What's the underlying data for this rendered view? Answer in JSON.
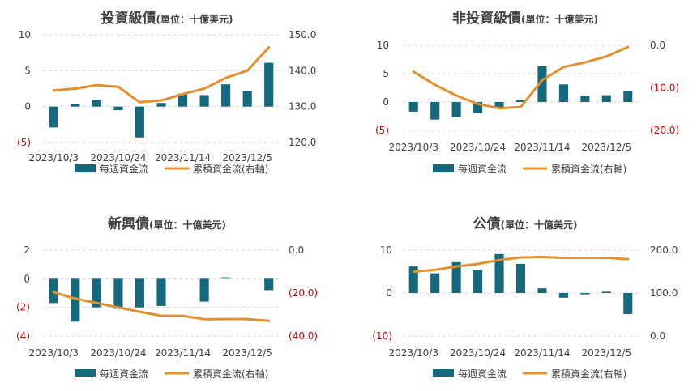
{
  "colors": {
    "bar": "#14697c",
    "line": "#e3902e",
    "grid": "#d9d9d9",
    "text": "#404040",
    "negative": "#e00000"
  },
  "legend": {
    "bar_label": "每週資金流",
    "line_label": "累積資金流(右軸)"
  },
  "chart_data": [
    {
      "type": "bar+line",
      "title": "投資級債",
      "subtitle": "(單位：十億美元)",
      "x_tick_labels": [
        "2023/10/3",
        "2023/10/24",
        "2023/11/14",
        "2023/12/5"
      ],
      "x_tick_indices": [
        0,
        3,
        6,
        9
      ],
      "left_ticks": [
        {
          "v": 10,
          "label": "10"
        },
        {
          "v": 5,
          "label": "5"
        },
        {
          "v": 0,
          "label": "0"
        },
        {
          "v": -5,
          "label": "(5)"
        }
      ],
      "right_ticks": [
        {
          "v": 150,
          "label": "150.0"
        },
        {
          "v": 140,
          "label": "140.0"
        },
        {
          "v": 130,
          "label": "130.0"
        },
        {
          "v": 120,
          "label": "120.0"
        }
      ],
      "ylim_left": [
        -5,
        10
      ],
      "ylim_right": [
        120,
        150
      ],
      "series": [
        {
          "name": "每週資金流",
          "kind": "bar",
          "axis": "left",
          "values": [
            -2.9,
            0.4,
            0.9,
            -0.5,
            -4.3,
            0.5,
            1.8,
            1.6,
            3.1,
            2.2,
            6.1
          ]
        },
        {
          "name": "累積資金流(右軸)",
          "kind": "line",
          "axis": "right",
          "values": [
            134.5,
            135.0,
            136.0,
            135.5,
            131.2,
            131.7,
            133.5,
            135.0,
            138.0,
            140.0,
            146.5
          ]
        }
      ]
    },
    {
      "type": "bar+line",
      "title": "非投資級債",
      "subtitle": "(單位：十億美元)",
      "x_tick_labels": [
        "2023/10/3",
        "2023/10/24",
        "2023/11/14",
        "2023/12/5"
      ],
      "x_tick_indices": [
        0,
        3,
        6,
        9
      ],
      "left_ticks": [
        {
          "v": 10,
          "label": "10"
        },
        {
          "v": 5,
          "label": "5"
        },
        {
          "v": 0,
          "label": "0"
        },
        {
          "v": -5,
          "label": "(5)"
        }
      ],
      "right_ticks": [
        {
          "v": 0,
          "label": "0.0"
        },
        {
          "v": -10,
          "label": "(10.0)"
        },
        {
          "v": -20,
          "label": "(20.0)"
        }
      ],
      "ylim_left": [
        -5,
        10
      ],
      "ylim_right": [
        -20,
        0
      ],
      "series": [
        {
          "name": "每週資金流",
          "kind": "bar",
          "axis": "left",
          "values": [
            -1.7,
            -3.1,
            -2.6,
            -2.0,
            -1.0,
            0.3,
            6.3,
            3.1,
            1.1,
            1.2,
            2.0
          ]
        },
        {
          "name": "累積資金流(右軸)",
          "kind": "line",
          "axis": "right",
          "values": [
            -6.2,
            -9.3,
            -11.8,
            -13.8,
            -14.8,
            -14.5,
            -8.2,
            -5.1,
            -4.0,
            -2.6,
            -0.4
          ]
        }
      ]
    },
    {
      "type": "bar+line",
      "title": "新興債",
      "subtitle": "(單位：十億美元)",
      "x_tick_labels": [
        "2023/10/3",
        "2023/10/24",
        "2023/11/14",
        "2023/12/5"
      ],
      "x_tick_indices": [
        0,
        3,
        6,
        9
      ],
      "left_ticks": [
        {
          "v": 2,
          "label": "2"
        },
        {
          "v": 0,
          "label": "0"
        },
        {
          "v": -2,
          "label": "(2)"
        },
        {
          "v": -4,
          "label": "(4)"
        }
      ],
      "right_ticks": [
        {
          "v": 0,
          "label": "0.0"
        },
        {
          "v": -20,
          "label": "(20.0)"
        },
        {
          "v": -40,
          "label": "(40.0)"
        }
      ],
      "ylim_left": [
        -4,
        2
      ],
      "ylim_right": [
        -40,
        0
      ],
      "series": [
        {
          "name": "每週資金流",
          "kind": "bar",
          "axis": "left",
          "values": [
            -1.7,
            -3.0,
            -2.0,
            -2.1,
            -2.0,
            -1.9,
            0.0,
            -1.6,
            0.1,
            0.0,
            -0.8
          ]
        },
        {
          "name": "累積資金流(右軸)",
          "kind": "line",
          "axis": "right",
          "values": [
            -19.6,
            -22.6,
            -24.6,
            -26.7,
            -28.7,
            -30.6,
            -30.6,
            -32.2,
            -32.1,
            -32.1,
            -32.9
          ]
        }
      ]
    },
    {
      "type": "bar+line",
      "title": "公債",
      "subtitle": "(單位：十億美元)",
      "x_tick_labels": [
        "2023/10/3",
        "2023/10/24",
        "2023/11/14",
        "2023/12/5"
      ],
      "x_tick_indices": [
        0,
        3,
        6,
        9
      ],
      "left_ticks": [
        {
          "v": 10,
          "label": "10"
        },
        {
          "v": 0,
          "label": "0"
        },
        {
          "v": -10,
          "label": "(10)"
        }
      ],
      "right_ticks": [
        {
          "v": 200,
          "label": "200.0"
        },
        {
          "v": 100,
          "label": "100.0"
        },
        {
          "v": 0,
          "label": "0.0"
        }
      ],
      "ylim_left": [
        -10,
        10
      ],
      "ylim_right": [
        0,
        200
      ],
      "series": [
        {
          "name": "每週資金流",
          "kind": "bar",
          "axis": "left",
          "values": [
            6.2,
            4.6,
            7.2,
            5.3,
            9.1,
            6.8,
            1.1,
            -1.1,
            -0.3,
            0.3,
            -4.9
          ]
        },
        {
          "name": "累積資金流(右軸)",
          "kind": "line",
          "axis": "right",
          "values": [
            150,
            154,
            162,
            168,
            177,
            183,
            184,
            182,
            182,
            182,
            179
          ]
        }
      ]
    }
  ]
}
